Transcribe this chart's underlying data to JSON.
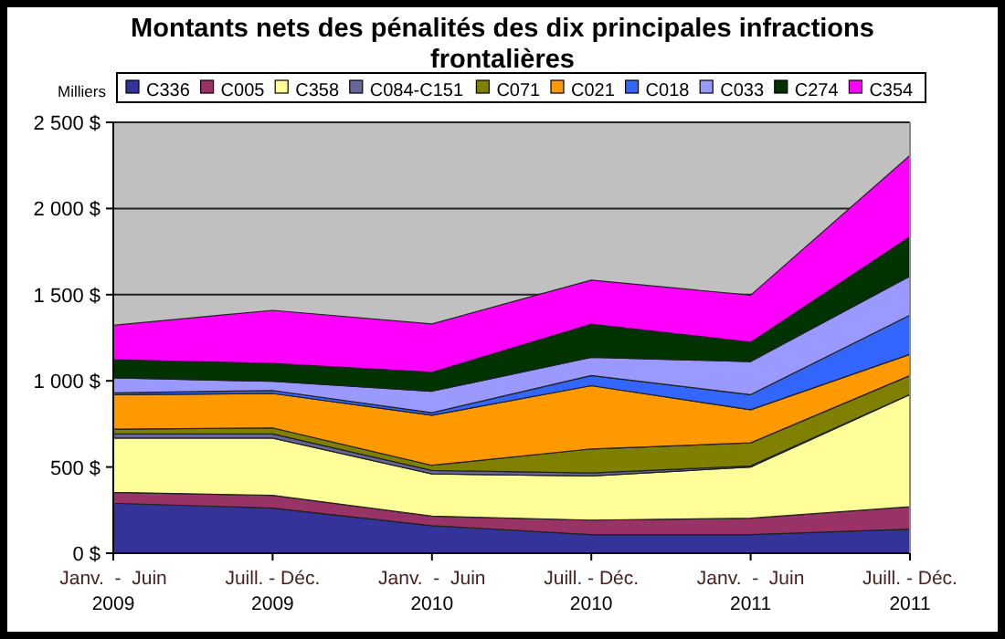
{
  "chart_data": {
    "type": "area",
    "stacked": true,
    "title": "Montants nets des pénalités des dix principales infractions frontalières",
    "annotations": [
      "Milliers"
    ],
    "categories": [
      "Janv.  -  Juin 2009",
      "Juill. - Déc. 2009",
      "Janv.  -  Juin 2010",
      "Juill. - Déc. 2010",
      "Janv.  -  Juin 2011",
      "Juill. - Déc. 2011"
    ],
    "series": [
      {
        "name": "C336",
        "color": "#333399",
        "values": [
          290,
          262,
          160,
          108,
          108,
          140
        ]
      },
      {
        "name": "C005",
        "color": "#993366",
        "values": [
          63,
          74,
          55,
          84,
          95,
          129
        ]
      },
      {
        "name": "C358",
        "color": "#ffff99",
        "values": [
          315,
          332,
          245,
          256,
          297,
          651
        ]
      },
      {
        "name": "C084-C151",
        "color": "#666699",
        "values": [
          24,
          24,
          20,
          17,
          7,
          2
        ]
      },
      {
        "name": "C071",
        "color": "#808000",
        "values": [
          28,
          35,
          30,
          140,
          133,
          109
        ]
      },
      {
        "name": "C021",
        "color": "#ff9900",
        "values": [
          200,
          200,
          290,
          367,
          192,
          123
        ]
      },
      {
        "name": "C018",
        "color": "#3366ff",
        "values": [
          10,
          17,
          15,
          59,
          88,
          227
        ]
      },
      {
        "name": "C033",
        "color": "#9999ff",
        "values": [
          87,
          53,
          125,
          105,
          192,
          227
        ]
      },
      {
        "name": "C274",
        "color": "#003300",
        "values": [
          105,
          104,
          110,
          193,
          112,
          228
        ]
      },
      {
        "name": "C354",
        "color": "#ff00ff",
        "values": [
          200,
          308,
          280,
          255,
          273,
          472
        ]
      }
    ],
    "ylim": [
      0,
      2500
    ],
    "yticks": [
      {
        "value": 0,
        "label": "0 $"
      },
      {
        "value": 500,
        "label": "500 $"
      },
      {
        "value": 1000,
        "label": "1 000 $"
      },
      {
        "value": 1500,
        "label": "1 500 $"
      },
      {
        "value": 2000,
        "label": "2 000 $"
      },
      {
        "value": 2500,
        "label": "2 500 $"
      }
    ],
    "grid": "y",
    "legend": "top"
  }
}
